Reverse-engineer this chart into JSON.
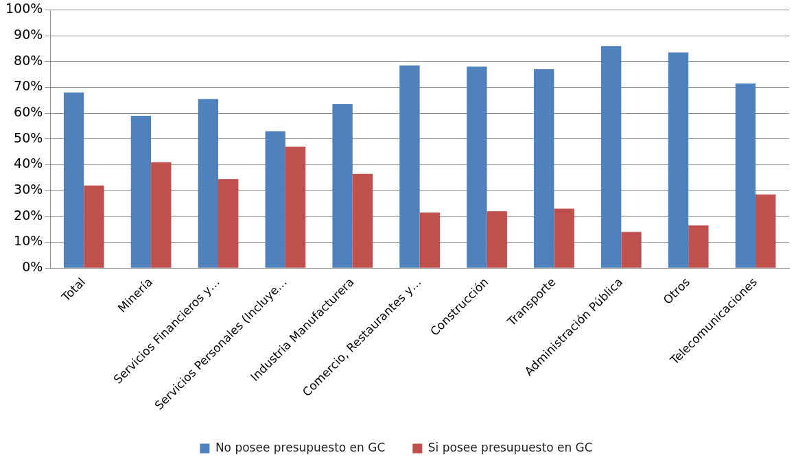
{
  "chart_data": {
    "type": "bar",
    "categories": [
      "Total",
      "Minería",
      "Servicios Financieros y…",
      "Servicios Personales (Incluye…",
      "Industria Manufacturera",
      "Comercio, Restaurantes y…",
      "Construcción",
      "Transporte",
      "Administración Pública",
      "Otros",
      "Telecomunicaciones"
    ],
    "series": [
      {
        "name": "No posee presupuesto en GC",
        "color": "#4f81bd",
        "values": [
          68,
          59,
          65.5,
          53,
          63.5,
          78.5,
          78,
          77,
          86,
          83.5,
          71.5
        ]
      },
      {
        "name": "Si posee presupuesto en GC",
        "color": "#c0504d",
        "values": [
          32,
          41,
          34.5,
          47,
          36.5,
          21.5,
          22,
          23,
          14,
          16.5,
          28.5
        ]
      }
    ],
    "ylim": [
      0,
      100
    ],
    "yticks": [
      {
        "value": 0,
        "label": "0%"
      },
      {
        "value": 10,
        "label": "10%"
      },
      {
        "value": 20,
        "label": "20%"
      },
      {
        "value": 30,
        "label": "30%"
      },
      {
        "value": 40,
        "label": "40%"
      },
      {
        "value": 50,
        "label": "50%"
      },
      {
        "value": 60,
        "label": "60%"
      },
      {
        "value": 70,
        "label": "70%"
      },
      {
        "value": 80,
        "label": "80%"
      },
      {
        "value": 90,
        "label": "90%"
      },
      {
        "value": 100,
        "label": "100%"
      }
    ],
    "grid": "y",
    "legend": "bottom"
  }
}
